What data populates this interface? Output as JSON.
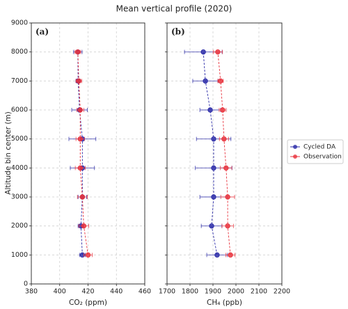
{
  "title": "Mean vertical profile (2020)",
  "y_label": "Altitude bin center (m)",
  "chart_data": [
    {
      "type": "errorbar",
      "panel_label": "(a)",
      "x_label": "CO₂ (ppm)",
      "y": [
        1000,
        2000,
        3000,
        4000,
        5000,
        6000,
        7000,
        8000
      ],
      "xlim": [
        380,
        460
      ],
      "xticks": [
        380,
        400,
        420,
        440,
        460
      ],
      "ylim": [
        0,
        9000
      ],
      "yticks": [
        0,
        1000,
        2000,
        3000,
        4000,
        5000,
        6000,
        7000,
        8000,
        9000
      ],
      "grid": true,
      "series": [
        {
          "color": "#2b2ba8",
          "values": [
            416,
            415,
            416,
            416,
            416,
            414,
            413,
            412.8
          ],
          "errors": [
            2,
            2,
            3,
            8.5,
            9.5,
            5.5,
            1.5,
            3
          ]
        },
        {
          "color": "#e8323c",
          "values": [
            420,
            417,
            416,
            414.5,
            414.5,
            414.5,
            413.5,
            412.8
          ],
          "errors": [
            3,
            3.5,
            3.5,
            3.5,
            3,
            2.5,
            2,
            2
          ]
        }
      ]
    },
    {
      "type": "errorbar",
      "panel_label": "(b)",
      "x_label": "CH₄ (ppb)",
      "y": [
        1000,
        2000,
        3000,
        4000,
        5000,
        6000,
        7000,
        8000
      ],
      "xlim": [
        1700,
        2200
      ],
      "xticks": [
        1700,
        1800,
        1900,
        2000,
        2100,
        2200
      ],
      "ylim": [
        0,
        9000
      ],
      "yticks": [
        0,
        1000,
        2000,
        3000,
        4000,
        5000,
        6000,
        7000,
        8000,
        9000
      ],
      "grid": true,
      "legend": "right",
      "series": [
        {
          "name": "Cycled DA",
          "color": "#2b2ba8",
          "values": [
            1918,
            1894,
            1903,
            1903,
            1903,
            1888,
            1867,
            1858
          ],
          "errors": [
            45,
            45,
            60,
            80,
            75,
            45,
            55,
            82
          ]
        },
        {
          "name": "Observation",
          "color": "#e8323c",
          "values": [
            1976,
            1964,
            1964,
            1957,
            1948,
            1942,
            1933,
            1921
          ],
          "errors": [
            20,
            25,
            30,
            25,
            20,
            15,
            12,
            20
          ]
        }
      ]
    }
  ]
}
